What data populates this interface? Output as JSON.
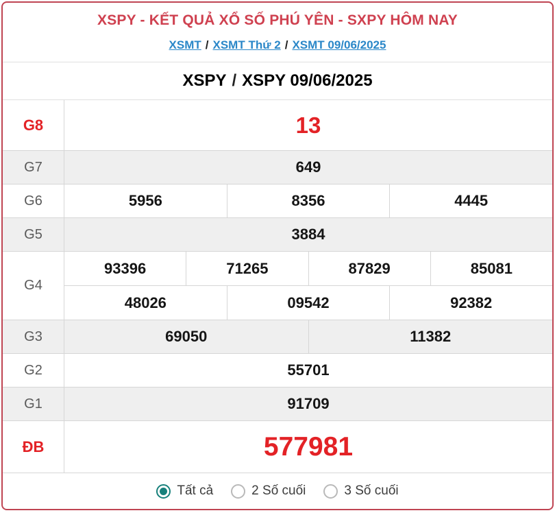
{
  "header": {
    "title": "XSPY - KẾT QUẢ XỔ SỐ PHÚ YÊN - SXPY HÔM NAY",
    "separator": "/",
    "breadcrumb": {
      "links": [
        "XSMT",
        "XSMT Thứ 2",
        "XSMT 09/06/2025"
      ]
    },
    "subheader": {
      "links": [
        "XSPY",
        "XSPY 09/06/2025"
      ]
    }
  },
  "results": {
    "rows": [
      {
        "label": "G8",
        "highlight": true,
        "groups": [
          [
            "13"
          ]
        ]
      },
      {
        "label": "G7",
        "highlight": false,
        "groups": [
          [
            "649"
          ]
        ]
      },
      {
        "label": "G6",
        "highlight": false,
        "groups": [
          [
            "5956",
            "8356",
            "4445"
          ]
        ]
      },
      {
        "label": "G5",
        "highlight": false,
        "groups": [
          [
            "3884"
          ]
        ]
      },
      {
        "label": "G4",
        "highlight": false,
        "groups": [
          [
            "93396",
            "71265",
            "87829",
            "85081"
          ],
          [
            "48026",
            "09542",
            "92382"
          ]
        ]
      },
      {
        "label": "G3",
        "highlight": false,
        "groups": [
          [
            "69050",
            "11382"
          ]
        ]
      },
      {
        "label": "G2",
        "highlight": false,
        "groups": [
          [
            "55701"
          ]
        ]
      },
      {
        "label": "G1",
        "highlight": false,
        "groups": [
          [
            "91709"
          ]
        ]
      },
      {
        "label": "ĐB",
        "highlight": true,
        "groups": [
          [
            "577981"
          ]
        ]
      }
    ]
  },
  "filter": {
    "options": [
      {
        "label": "Tất cả",
        "selected": true
      },
      {
        "label": "2 Số cuối",
        "selected": false
      },
      {
        "label": "3 Số cuối",
        "selected": false
      }
    ]
  },
  "colors": {
    "border_red": "#bf4452",
    "title_red": "#cf4150",
    "number_red": "#e32226",
    "link_blue": "#2a87c8",
    "row_alt_bg": "#efefef",
    "grid_line": "#d6d6d6",
    "radio_teal": "#17807b"
  }
}
